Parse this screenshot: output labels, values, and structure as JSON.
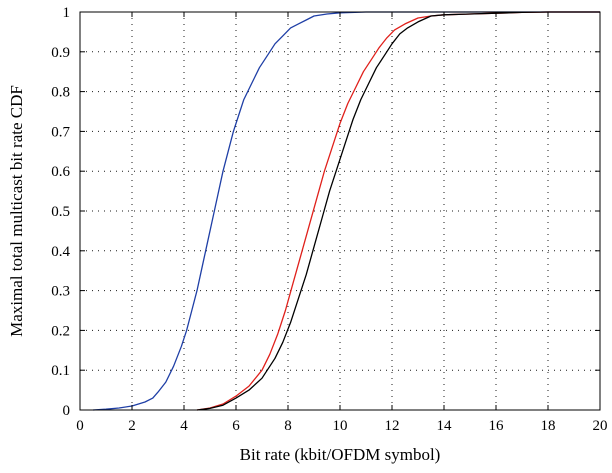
{
  "chart_data": {
    "type": "line",
    "title": "",
    "xlabel": "Bit rate (kbit/OFDM symbol)",
    "ylabel": "Maximal total multicast bit rate CDF",
    "xlim": [
      0,
      20
    ],
    "ylim": [
      0,
      1
    ],
    "xticks": [
      "0",
      "2",
      "4",
      "6",
      "8",
      "10",
      "12",
      "14",
      "16",
      "18",
      "20"
    ],
    "yticks": [
      "0",
      "0.1",
      "0.2",
      "0.3",
      "0.4",
      "0.5",
      "0.6",
      "0.7",
      "0.8",
      "0.9",
      "1"
    ],
    "grid": true,
    "legend": "none",
    "series": [
      {
        "color": "#1f3fa6",
        "x": [
          0.5,
          1,
          1.5,
          2,
          2.5,
          2.8,
          3,
          3.3,
          3.6,
          3.9,
          4.1,
          4.3,
          4.5,
          4.7,
          4.9,
          5.1,
          5.3,
          5.5,
          5.7,
          5.9,
          6.1,
          6.3,
          6.6,
          6.9,
          7.2,
          7.5,
          7.8,
          8.1,
          8.4,
          8.7,
          9.0,
          9.5,
          10,
          11,
          12,
          20
        ],
        "y": [
          0,
          0.002,
          0.005,
          0.01,
          0.02,
          0.03,
          0.045,
          0.07,
          0.11,
          0.16,
          0.2,
          0.25,
          0.3,
          0.36,
          0.42,
          0.48,
          0.54,
          0.6,
          0.65,
          0.7,
          0.74,
          0.78,
          0.82,
          0.86,
          0.89,
          0.92,
          0.94,
          0.96,
          0.97,
          0.98,
          0.99,
          0.995,
          0.998,
          1.0,
          1.0,
          1.0
        ]
      },
      {
        "color": "#e0201b",
        "x": [
          4.5,
          5,
          5.5,
          6,
          6.5,
          7,
          7.3,
          7.6,
          7.9,
          8.2,
          8.5,
          8.8,
          9.1,
          9.4,
          9.7,
          10,
          10.3,
          10.6,
          10.9,
          11.2,
          11.5,
          11.8,
          12.1,
          12.5,
          13,
          13.5,
          14,
          15,
          16,
          17,
          18,
          20
        ],
        "y": [
          0,
          0.005,
          0.015,
          0.035,
          0.06,
          0.1,
          0.14,
          0.19,
          0.25,
          0.32,
          0.39,
          0.46,
          0.53,
          0.6,
          0.66,
          0.72,
          0.77,
          0.81,
          0.85,
          0.88,
          0.91,
          0.935,
          0.955,
          0.97,
          0.985,
          0.99,
          0.993,
          0.995,
          0.997,
          0.999,
          1.0,
          1.0
        ]
      },
      {
        "color": "#000000",
        "x": [
          4.5,
          5,
          5.5,
          6,
          6.5,
          7,
          7.5,
          7.8,
          8.1,
          8.4,
          8.7,
          9.0,
          9.3,
          9.6,
          9.9,
          10.2,
          10.5,
          10.8,
          11.1,
          11.4,
          11.7,
          12.0,
          12.3,
          12.6,
          13,
          13.5,
          14,
          15,
          16,
          17,
          18,
          20
        ],
        "y": [
          0,
          0.004,
          0.012,
          0.03,
          0.05,
          0.08,
          0.13,
          0.17,
          0.22,
          0.28,
          0.34,
          0.41,
          0.48,
          0.55,
          0.61,
          0.67,
          0.73,
          0.78,
          0.82,
          0.86,
          0.89,
          0.92,
          0.945,
          0.96,
          0.975,
          0.99,
          0.993,
          0.995,
          0.997,
          0.999,
          1.0,
          1.0
        ]
      }
    ]
  }
}
